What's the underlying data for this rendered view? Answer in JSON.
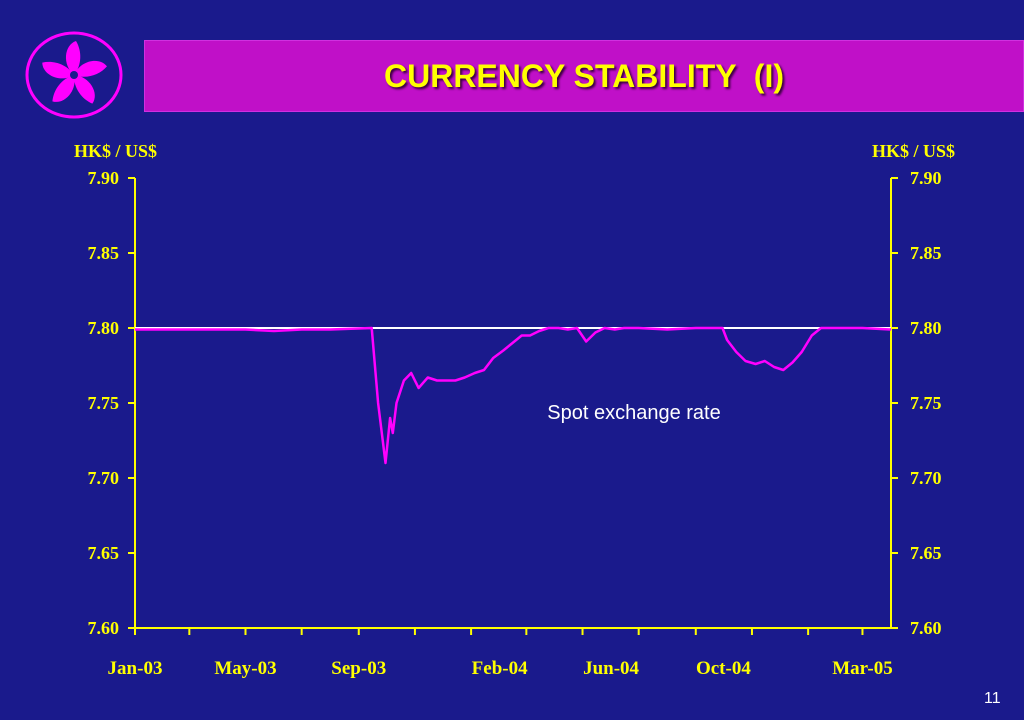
{
  "slide": {
    "title": "CURRENCY STABILITY  (I)",
    "page_number": "11",
    "logo": "bauhinia-flower-logo",
    "colors": {
      "background": "#1a1a8c",
      "banner": "#c010c8",
      "title": "#ffff00",
      "axis": "#ffff00",
      "series": "#ff00ff",
      "reference_line": "#ffffff"
    }
  },
  "chart_data": {
    "type": "line",
    "title": "",
    "ylabel_left": "HK$ / US$",
    "ylabel_right": "HK$ / US$",
    "ylim": [
      7.6,
      7.9
    ],
    "yticks": [
      "7.60",
      "7.65",
      "7.70",
      "7.75",
      "7.80",
      "7.85",
      "7.90"
    ],
    "x_tick_labels": [
      "Jan-03",
      "May-03",
      "Sep-03",
      "Feb-04",
      "Jun-04",
      "Oct-04",
      "Mar-05"
    ],
    "x_tick_label_months": [
      "2003-01",
      "2003-05",
      "2003-09",
      "2004-02",
      "2004-06",
      "2004-10",
      "2005-03"
    ],
    "reference_line": {
      "value": 7.8
    },
    "annotation": "Spot exchange rate",
    "grid": false,
    "series": [
      {
        "name": "",
        "x": [
          "2003-01",
          "2003-02",
          "2003-03",
          "2003-04",
          "2003-05",
          "2003-06",
          "2003-07",
          "2003-08",
          "2003-09-15",
          "2003-09-22",
          "2003-09-26",
          "2003-09-30",
          "2003-10-05",
          "2003-10-08",
          "2003-10-12",
          "2003-10-20",
          "2003-10-28",
          "2003-11-05",
          "2003-11-15",
          "2003-11-25",
          "2003-12-05",
          "2003-12-15",
          "2003-12-25",
          "2004-01-05",
          "2004-01-15",
          "2004-01-25",
          "2004-02-05",
          "2004-02-15",
          "2004-02-25",
          "2004-03-05",
          "2004-03-15",
          "2004-03-25",
          "2004-04-05",
          "2004-04-15",
          "2004-04-25",
          "2004-05-05",
          "2004-05-15",
          "2004-05-25",
          "2004-06-05",
          "2004-06-15",
          "2004-07-01",
          "2004-08-01",
          "2004-09-01",
          "2004-09-30",
          "2004-10-05",
          "2004-10-15",
          "2004-10-25",
          "2004-11-05",
          "2004-11-15",
          "2004-11-25",
          "2004-12-05",
          "2004-12-15",
          "2004-12-25",
          "2005-01-05",
          "2005-01-15",
          "2005-02-01",
          "2005-03-01",
          "2005-04-01"
        ],
        "values": [
          7.799,
          7.799,
          7.799,
          7.799,
          7.799,
          7.798,
          7.799,
          7.799,
          7.8,
          7.75,
          7.73,
          7.71,
          7.74,
          7.73,
          7.75,
          7.765,
          7.77,
          7.76,
          7.767,
          7.765,
          7.765,
          7.765,
          7.767,
          7.77,
          7.772,
          7.78,
          7.785,
          7.79,
          7.795,
          7.795,
          7.798,
          7.8,
          7.8,
          7.799,
          7.8,
          7.791,
          7.797,
          7.8,
          7.799,
          7.8,
          7.8,
          7.799,
          7.8,
          7.8,
          7.792,
          7.784,
          7.778,
          7.776,
          7.778,
          7.774,
          7.772,
          7.777,
          7.784,
          7.795,
          7.8,
          7.8,
          7.8,
          7.799
        ]
      }
    ]
  }
}
